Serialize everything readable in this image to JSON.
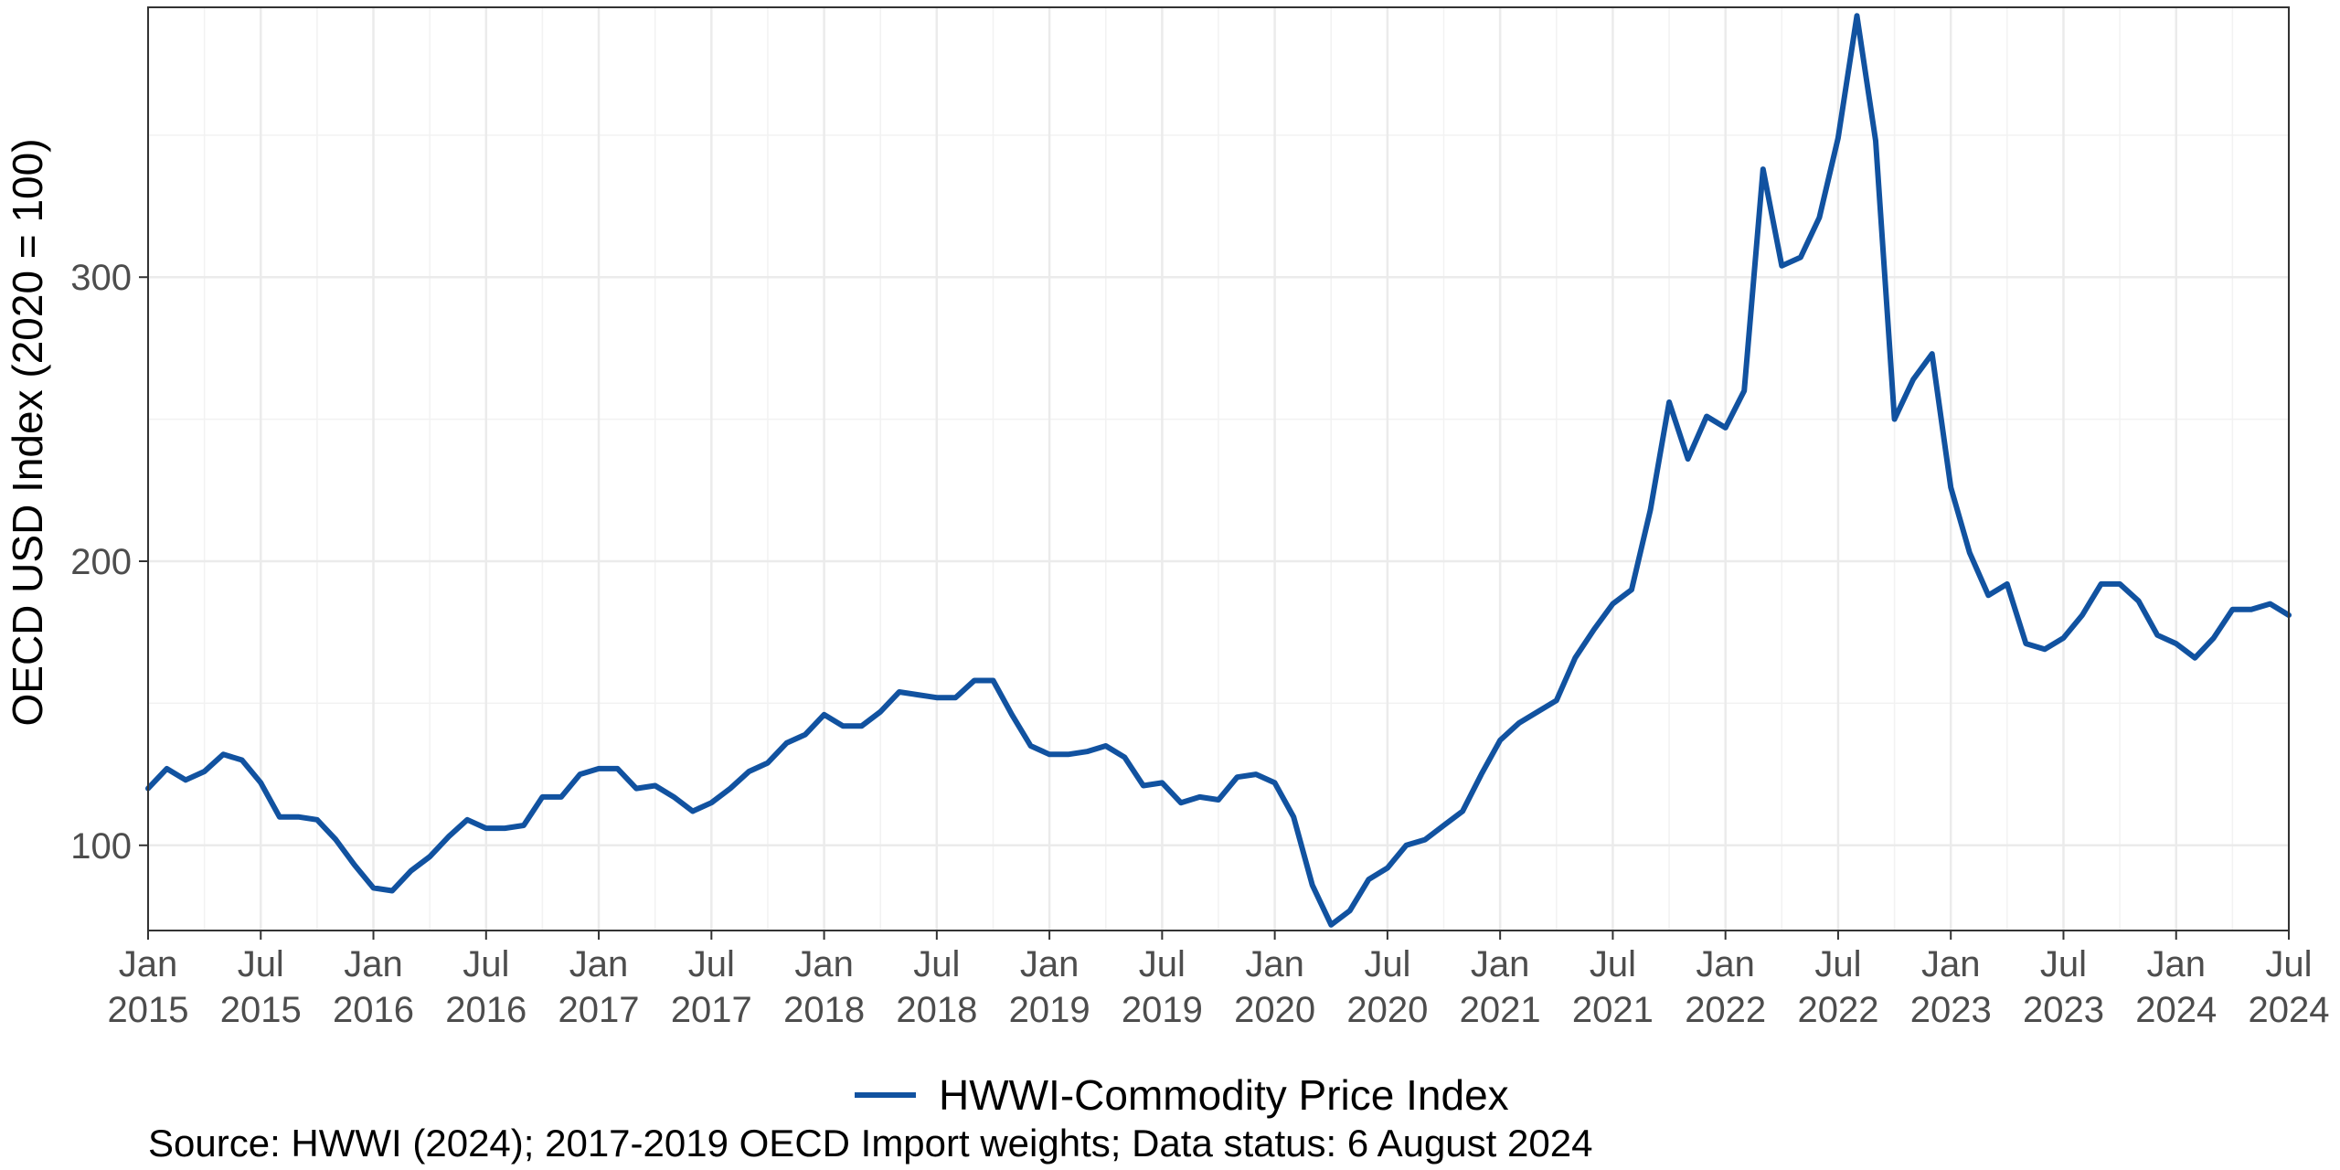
{
  "chart_data": {
    "type": "line",
    "ylabel": "OECD USD Index (2020 = 100)",
    "xlabel": "",
    "title": "",
    "yticks": [
      100,
      200,
      300
    ],
    "ylim": [
      70,
      395
    ],
    "x_start": "2015-01",
    "x_end": "2024-07",
    "xticks": [
      {
        "date": "2015-01",
        "month": "Jan",
        "year": "2015"
      },
      {
        "date": "2015-07",
        "month": "Jul",
        "year": "2015"
      },
      {
        "date": "2016-01",
        "month": "Jan",
        "year": "2016"
      },
      {
        "date": "2016-07",
        "month": "Jul",
        "year": "2016"
      },
      {
        "date": "2017-01",
        "month": "Jan",
        "year": "2017"
      },
      {
        "date": "2017-07",
        "month": "Jul",
        "year": "2017"
      },
      {
        "date": "2018-01",
        "month": "Jan",
        "year": "2018"
      },
      {
        "date": "2018-07",
        "month": "Jul",
        "year": "2018"
      },
      {
        "date": "2019-01",
        "month": "Jan",
        "year": "2019"
      },
      {
        "date": "2019-07",
        "month": "Jul",
        "year": "2019"
      },
      {
        "date": "2020-01",
        "month": "Jan",
        "year": "2020"
      },
      {
        "date": "2020-07",
        "month": "Jul",
        "year": "2020"
      },
      {
        "date": "2021-01",
        "month": "Jan",
        "year": "2021"
      },
      {
        "date": "2021-07",
        "month": "Jul",
        "year": "2021"
      },
      {
        "date": "2022-01",
        "month": "Jan",
        "year": "2022"
      },
      {
        "date": "2022-07",
        "month": "Jul",
        "year": "2022"
      },
      {
        "date": "2023-01",
        "month": "Jan",
        "year": "2023"
      },
      {
        "date": "2023-07",
        "month": "Jul",
        "year": "2023"
      },
      {
        "date": "2024-01",
        "month": "Jan",
        "year": "2024"
      },
      {
        "date": "2024-07",
        "month": "Jul",
        "year": "2024"
      }
    ],
    "grid": true,
    "legend_position": "bottom",
    "series": [
      {
        "name": "HWWI-Commodity Price Index",
        "color": "#1152a0",
        "x": [
          "2015-01",
          "2015-02",
          "2015-03",
          "2015-04",
          "2015-05",
          "2015-06",
          "2015-07",
          "2015-08",
          "2015-09",
          "2015-10",
          "2015-11",
          "2015-12",
          "2016-01",
          "2016-02",
          "2016-03",
          "2016-04",
          "2016-05",
          "2016-06",
          "2016-07",
          "2016-08",
          "2016-09",
          "2016-10",
          "2016-11",
          "2016-12",
          "2017-01",
          "2017-02",
          "2017-03",
          "2017-04",
          "2017-05",
          "2017-06",
          "2017-07",
          "2017-08",
          "2017-09",
          "2017-10",
          "2017-11",
          "2017-12",
          "2018-01",
          "2018-02",
          "2018-03",
          "2018-04",
          "2018-05",
          "2018-06",
          "2018-07",
          "2018-08",
          "2018-09",
          "2018-10",
          "2018-11",
          "2018-12",
          "2019-01",
          "2019-02",
          "2019-03",
          "2019-04",
          "2019-05",
          "2019-06",
          "2019-07",
          "2019-08",
          "2019-09",
          "2019-10",
          "2019-11",
          "2019-12",
          "2020-01",
          "2020-02",
          "2020-03",
          "2020-04",
          "2020-05",
          "2020-06",
          "2020-07",
          "2020-08",
          "2020-09",
          "2020-10",
          "2020-11",
          "2020-12",
          "2021-01",
          "2021-02",
          "2021-03",
          "2021-04",
          "2021-05",
          "2021-06",
          "2021-07",
          "2021-08",
          "2021-09",
          "2021-10",
          "2021-11",
          "2021-12",
          "2022-01",
          "2022-02",
          "2022-03",
          "2022-04",
          "2022-05",
          "2022-06",
          "2022-07",
          "2022-08",
          "2022-09",
          "2022-10",
          "2022-11",
          "2022-12",
          "2023-01",
          "2023-02",
          "2023-03",
          "2023-04",
          "2023-05",
          "2023-06",
          "2023-07",
          "2023-08",
          "2023-09",
          "2023-10",
          "2023-11",
          "2023-12",
          "2024-01",
          "2024-02",
          "2024-03",
          "2024-04",
          "2024-05",
          "2024-06",
          "2024-07"
        ],
        "values": [
          120,
          127,
          123,
          126,
          132,
          130,
          122,
          110,
          110,
          109,
          102,
          93,
          85,
          84,
          91,
          96,
          103,
          109,
          106,
          106,
          107,
          117,
          117,
          125,
          127,
          127,
          120,
          121,
          117,
          112,
          115,
          120,
          126,
          129,
          136,
          139,
          146,
          142,
          142,
          147,
          154,
          153,
          152,
          152,
          158,
          158,
          146,
          135,
          132,
          132,
          133,
          135,
          131,
          121,
          122,
          115,
          117,
          116,
          124,
          125,
          122,
          110,
          86,
          72,
          77,
          88,
          92,
          100,
          102,
          107,
          112,
          125,
          137,
          143,
          147,
          151,
          166,
          176,
          185,
          190,
          218,
          256,
          236,
          251,
          247,
          260,
          338,
          304,
          307,
          321,
          349,
          392,
          348,
          250,
          264,
          273,
          226,
          203,
          188,
          192,
          171,
          169,
          173,
          181,
          192,
          192,
          186,
          174,
          171,
          166,
          173,
          183,
          183,
          185,
          181
        ]
      }
    ],
    "legend": [
      {
        "label": "HWWI-Commodity Price Index",
        "color": "#1152a0"
      }
    ],
    "caption": "Source: HWWI (2024); 2017-2019 OECD Import weights; Data status: 6 August 2024"
  }
}
